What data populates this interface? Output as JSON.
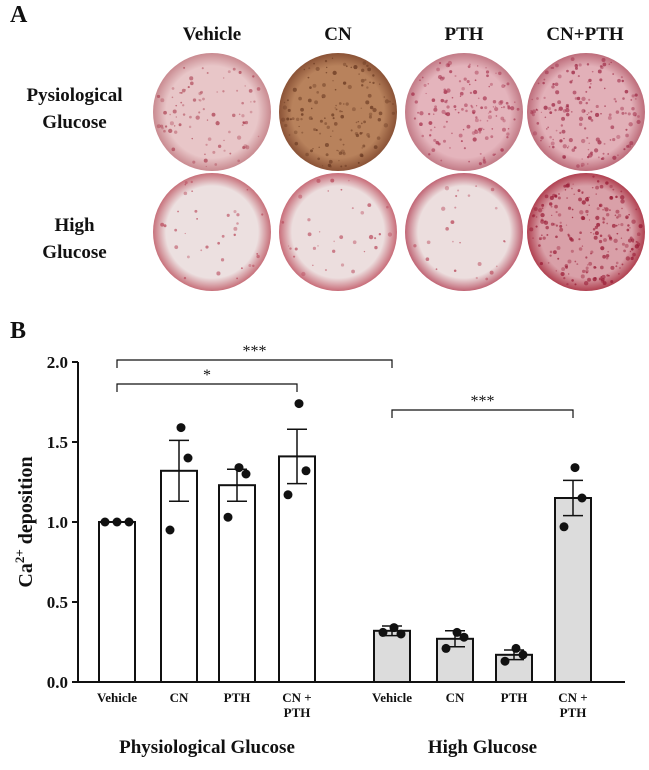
{
  "panel_a": {
    "letter": "A",
    "columns": [
      "Vehicle",
      "CN",
      "PTH",
      "CN+PTH"
    ],
    "rows": [
      {
        "line1": "Pysiological",
        "line2": "Glucose"
      },
      {
        "line1": "High",
        "line2": "Glucose"
      }
    ],
    "wells": [
      [
        {
          "name": "vehicle-physiological",
          "base": "#e8c6c8",
          "rim": "#c98a90",
          "spot": "#b04a5a",
          "density": 90
        },
        {
          "name": "cn-physiological",
          "base": "#b8825c",
          "rim": "#8a5236",
          "spot": "#6a3a22",
          "density": 140
        },
        {
          "name": "pth-physiological",
          "base": "#e4b4bc",
          "rim": "#c27a86",
          "spot": "#a83550",
          "density": 150
        },
        {
          "name": "cn-pth-physiological",
          "base": "#e2b0b8",
          "rim": "#bd6c7a",
          "spot": "#a02c48",
          "density": 170
        }
      ],
      [
        {
          "name": "vehicle-high",
          "base": "#ece0e0",
          "rim": "#c7707a",
          "spot": "#b94a5c",
          "density": 35
        },
        {
          "name": "cn-high",
          "base": "#ecdede",
          "rim": "#c86c78",
          "spot": "#b94a5c",
          "density": 35
        },
        {
          "name": "pth-high",
          "base": "#ecdede",
          "rim": "#c06474",
          "spot": "#b94a5c",
          "density": 25
        },
        {
          "name": "cn-pth-high",
          "base": "#d9a0a8",
          "rim": "#b04050",
          "spot": "#9a1c36",
          "density": 220
        }
      ]
    ]
  },
  "panel_b": {
    "letter": "B"
  },
  "chart_data": {
    "type": "bar",
    "ylabel_main": "Ca",
    "ylabel_sup": "2+",
    "ylabel_rest": " deposition",
    "ylim": [
      0,
      2.0
    ],
    "yticks": [
      "0.0",
      "0.5",
      "1.0",
      "1.5",
      "2.0"
    ],
    "groups": [
      {
        "label": "Physiological Glucose",
        "fill": "#ffffff",
        "bars": [
          {
            "label": "Vehicle",
            "value": 1.0,
            "sem": 0.0,
            "points": [
              1.0,
              1.0,
              1.0
            ]
          },
          {
            "label": "CN",
            "value": 1.32,
            "sem": 0.19,
            "points": [
              1.59,
              0.95,
              1.4
            ]
          },
          {
            "label": "PTH",
            "value": 1.23,
            "sem": 0.1,
            "points": [
              1.34,
              1.03,
              1.3
            ]
          },
          {
            "label": "CN +\nPTH",
            "value": 1.41,
            "sem": 0.17,
            "points": [
              1.74,
              1.17,
              1.32
            ]
          }
        ]
      },
      {
        "label": "High Glucose",
        "fill": "#dcdcdc",
        "bars": [
          {
            "label": "Vehicle",
            "value": 0.32,
            "sem": 0.03,
            "points": [
              0.34,
              0.31,
              0.3
            ]
          },
          {
            "label": "CN",
            "value": 0.27,
            "sem": 0.05,
            "points": [
              0.31,
              0.21,
              0.28
            ]
          },
          {
            "label": "PTH",
            "value": 0.17,
            "sem": 0.03,
            "points": [
              0.21,
              0.13,
              0.17
            ]
          },
          {
            "label": "CN +\nPTH",
            "value": 1.15,
            "sem": 0.11,
            "points": [
              1.34,
              0.97,
              1.15
            ]
          }
        ]
      }
    ],
    "significance": [
      {
        "label": "***",
        "from": [
          0,
          0
        ],
        "to": [
          1,
          0
        ]
      },
      {
        "label": "*",
        "from": [
          0,
          0
        ],
        "to": [
          0,
          3
        ]
      },
      {
        "label": "***",
        "from": [
          1,
          0
        ],
        "to": [
          1,
          3
        ]
      }
    ]
  }
}
